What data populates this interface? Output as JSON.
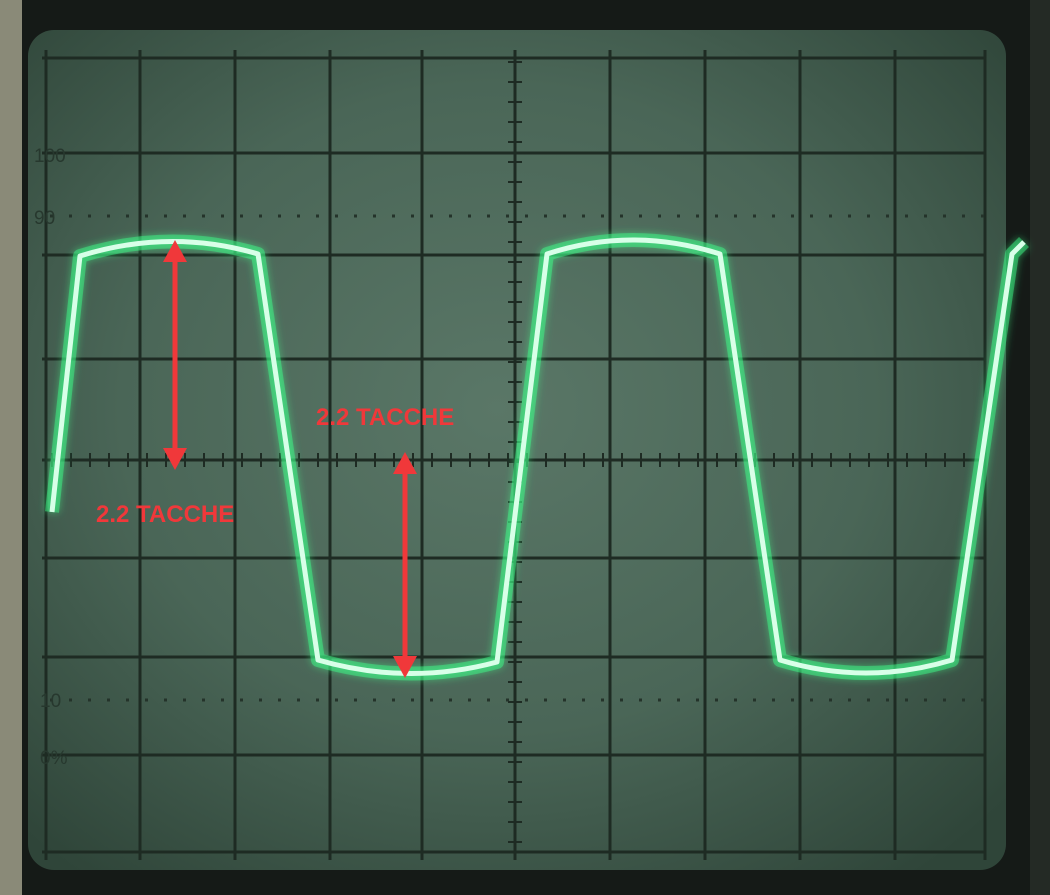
{
  "screen": {
    "graticule_labels": {
      "pct_100": "100",
      "pct_90": "90",
      "pct_10": "10",
      "pct_0": "0%"
    }
  },
  "annotations": [
    {
      "text": "2.2 TACCHE"
    },
    {
      "text": "2.2 TACCHE"
    }
  ],
  "colors": {
    "trace": "#c8ffe0",
    "trace_glow": "#3dff8a",
    "annotation": "#f0383a",
    "screen": "#4a6656",
    "grid": "#1f2c24"
  }
}
